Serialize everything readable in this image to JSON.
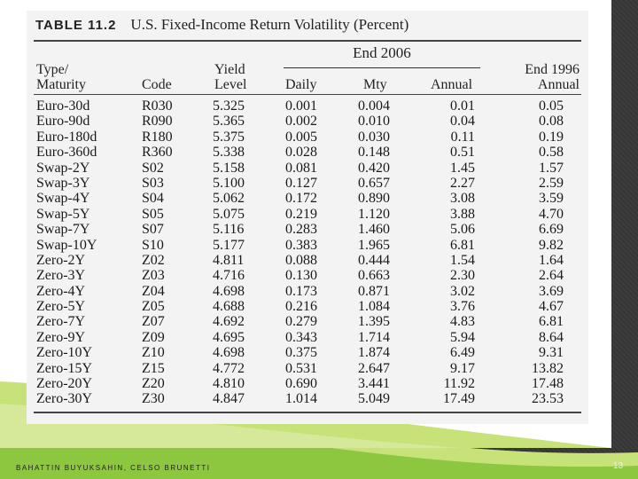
{
  "table": {
    "label": "TABLE 11.2",
    "title": "U.S. Fixed-Income Return Volatility (Percent)",
    "group_header": "End 2006",
    "columns": {
      "type": "Type/\nMaturity",
      "code": "Code",
      "yield": "Yield\nLevel",
      "daily": "Daily",
      "mty": "Mty",
      "annual": "Annual",
      "end1996": "End 1996\nAnnual"
    },
    "rows": [
      {
        "type": "Euro-30d",
        "code": "R030",
        "yield": "5.325",
        "daily": "0.001",
        "mty": "0.004",
        "annual": "0.01",
        "end1996": "0.05"
      },
      {
        "type": "Euro-90d",
        "code": "R090",
        "yield": "5.365",
        "daily": "0.002",
        "mty": "0.010",
        "annual": "0.04",
        "end1996": "0.08"
      },
      {
        "type": "Euro-180d",
        "code": "R180",
        "yield": "5.375",
        "daily": "0.005",
        "mty": "0.030",
        "annual": "0.11",
        "end1996": "0.19"
      },
      {
        "type": "Euro-360d",
        "code": "R360",
        "yield": "5.338",
        "daily": "0.028",
        "mty": "0.148",
        "annual": "0.51",
        "end1996": "0.58"
      },
      {
        "type": "Swap-2Y",
        "code": "S02",
        "yield": "5.158",
        "daily": "0.081",
        "mty": "0.420",
        "annual": "1.45",
        "end1996": "1.57"
      },
      {
        "type": "Swap-3Y",
        "code": "S03",
        "yield": "5.100",
        "daily": "0.127",
        "mty": "0.657",
        "annual": "2.27",
        "end1996": "2.59"
      },
      {
        "type": "Swap-4Y",
        "code": "S04",
        "yield": "5.062",
        "daily": "0.172",
        "mty": "0.890",
        "annual": "3.08",
        "end1996": "3.59"
      },
      {
        "type": "Swap-5Y",
        "code": "S05",
        "yield": "5.075",
        "daily": "0.219",
        "mty": "1.120",
        "annual": "3.88",
        "end1996": "4.70"
      },
      {
        "type": "Swap-7Y",
        "code": "S07",
        "yield": "5.116",
        "daily": "0.283",
        "mty": "1.460",
        "annual": "5.06",
        "end1996": "6.69"
      },
      {
        "type": "Swap-10Y",
        "code": "S10",
        "yield": "5.177",
        "daily": "0.383",
        "mty": "1.965",
        "annual": "6.81",
        "end1996": "9.82"
      },
      {
        "type": "Zero-2Y",
        "code": "Z02",
        "yield": "4.811",
        "daily": "0.088",
        "mty": "0.444",
        "annual": "1.54",
        "end1996": "1.64"
      },
      {
        "type": "Zero-3Y",
        "code": "Z03",
        "yield": "4.716",
        "daily": "0.130",
        "mty": "0.663",
        "annual": "2.30",
        "end1996": "2.64"
      },
      {
        "type": "Zero-4Y",
        "code": "Z04",
        "yield": "4.698",
        "daily": "0.173",
        "mty": "0.871",
        "annual": "3.02",
        "end1996": "3.69"
      },
      {
        "type": "Zero-5Y",
        "code": "Z05",
        "yield": "4.688",
        "daily": "0.216",
        "mty": "1.084",
        "annual": "3.76",
        "end1996": "4.67"
      },
      {
        "type": "Zero-7Y",
        "code": "Z07",
        "yield": "4.692",
        "daily": "0.279",
        "mty": "1.395",
        "annual": "4.83",
        "end1996": "6.81"
      },
      {
        "type": "Zero-9Y",
        "code": "Z09",
        "yield": "4.695",
        "daily": "0.343",
        "mty": "1.714",
        "annual": "5.94",
        "end1996": "8.64"
      },
      {
        "type": "Zero-10Y",
        "code": "Z10",
        "yield": "4.698",
        "daily": "0.375",
        "mty": "1.874",
        "annual": "6.49",
        "end1996": "9.31"
      },
      {
        "type": "Zero-15Y",
        "code": "Z15",
        "yield": "4.772",
        "daily": "0.531",
        "mty": "2.647",
        "annual": "9.17",
        "end1996": "13.82"
      },
      {
        "type": "Zero-20Y",
        "code": "Z20",
        "yield": "4.810",
        "daily": "0.690",
        "mty": "3.441",
        "annual": "11.92",
        "end1996": "17.48"
      },
      {
        "type": "Zero-30Y",
        "code": "Z30",
        "yield": "4.847",
        "daily": "1.014",
        "mty": "5.049",
        "annual": "17.49",
        "end1996": "23.53"
      }
    ]
  },
  "footer": {
    "authors": "BAHATTIN BUYUKSAHIN, CELSO BRUNETTI",
    "page_number": "13"
  },
  "colors": {
    "wave_light": "#c8e27a",
    "wave_dark": "#8dc63f",
    "slide_border": "#3a3a3a"
  }
}
